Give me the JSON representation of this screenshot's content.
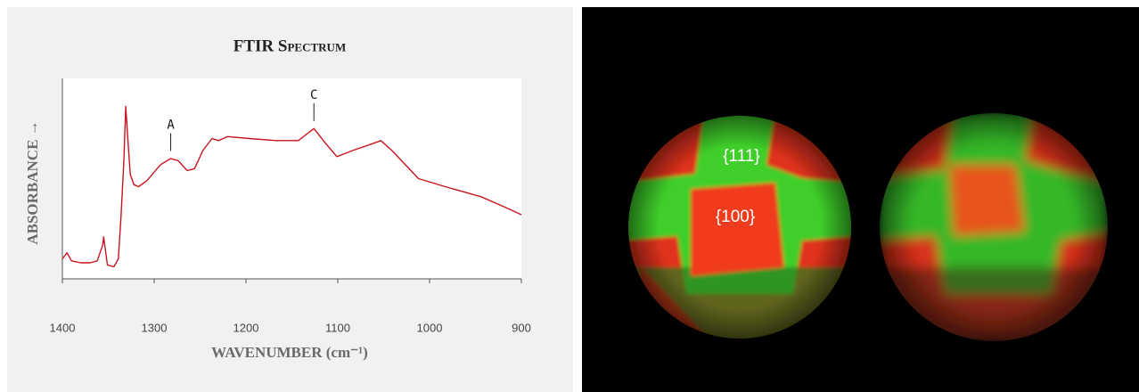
{
  "chart_data": {
    "type": "line",
    "title": "FTIR Spectrum",
    "x_label": "WAVENUMBER (cm⁻¹)",
    "y_label": "ABSORBANCE →",
    "x": [
      1400,
      1395,
      1390,
      1380,
      1370,
      1362,
      1356,
      1355,
      1351,
      1344,
      1339,
      1336,
      1333,
      1331,
      1329,
      1326,
      1322,
      1317,
      1308,
      1293,
      1282,
      1274,
      1264,
      1256,
      1247,
      1237,
      1230,
      1220,
      1196,
      1167,
      1143,
      1126,
      1114,
      1101,
      1084,
      1065,
      1053,
      1041,
      1012,
      983,
      944,
      919,
      900
    ],
    "values": [
      10,
      13,
      9,
      8,
      8,
      9,
      17,
      21,
      7,
      6,
      10,
      32,
      59,
      86,
      72,
      52,
      47,
      46,
      49,
      57,
      60,
      59,
      54,
      55,
      64,
      70,
      69,
      71,
      70,
      69,
      69,
      75,
      68,
      61,
      64,
      67,
      69,
      64,
      50,
      46,
      41,
      36,
      32
    ],
    "color": "#c8141e",
    "xlim": [
      1400,
      900
    ],
    "xticks": [
      1400,
      1300,
      1200,
      1100,
      1000,
      900
    ],
    "ylim": [
      0,
      100
    ],
    "annotations": [
      {
        "text": "A",
        "x": 1282,
        "y": 62
      },
      {
        "text": "C",
        "x": 1126,
        "y": 77
      }
    ]
  },
  "photo": {
    "labels": [
      "{111}",
      "{100}"
    ]
  }
}
